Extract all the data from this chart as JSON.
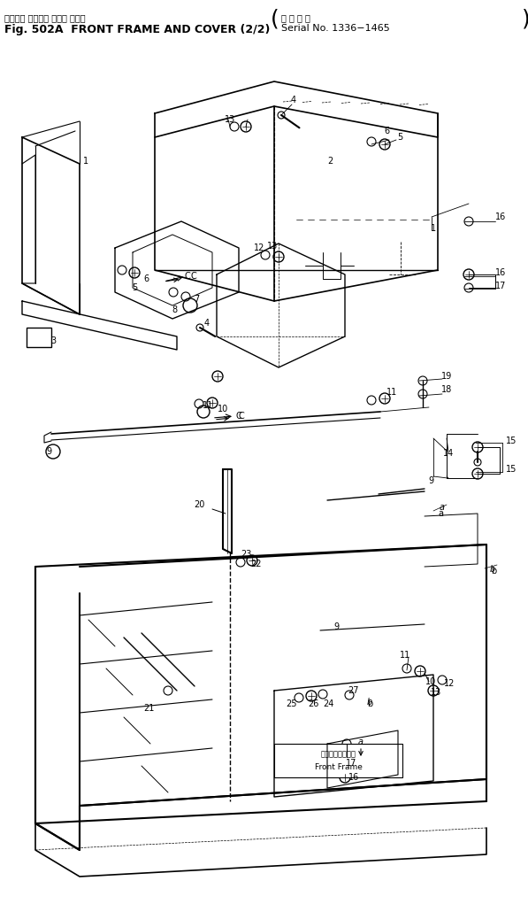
{
  "title_line1": "フロント フレーム および カバー",
  "title_line2": "Fig. 502A  FRONT FRAME AND COVER (2/2)",
  "serial_line1": "適 用 号 機",
  "serial_line2": "Serial No. 1336−1465",
  "bg_color": "#ffffff",
  "fig_width": 5.97,
  "fig_height": 10.21,
  "dpi": 100,
  "annotation_front_frame_jp": "フロントフレーム",
  "annotation_front_frame_en": "Front Frame"
}
